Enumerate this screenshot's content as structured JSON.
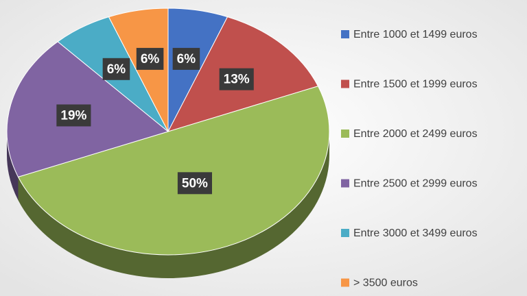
{
  "chart_data": {
    "type": "pie",
    "categories": [
      "Entre 1000 et 1499 euros",
      "Entre 1500 et 1999 euros",
      "Entre 2000 et 2499 euros",
      "Entre 2500 et 2999 euros",
      "Entre 3000 et 3499 euros",
      "> 3500 euros"
    ],
    "values": [
      6,
      13,
      50,
      19,
      6,
      6
    ],
    "value_labels": [
      "6%",
      "13%",
      "50%",
      "19%",
      "6%",
      "6%"
    ],
    "colors": [
      "#4472c4",
      "#c0504d",
      "#9bbb59",
      "#8064a2",
      "#4bacc6",
      "#f79646"
    ],
    "legend": "right"
  }
}
